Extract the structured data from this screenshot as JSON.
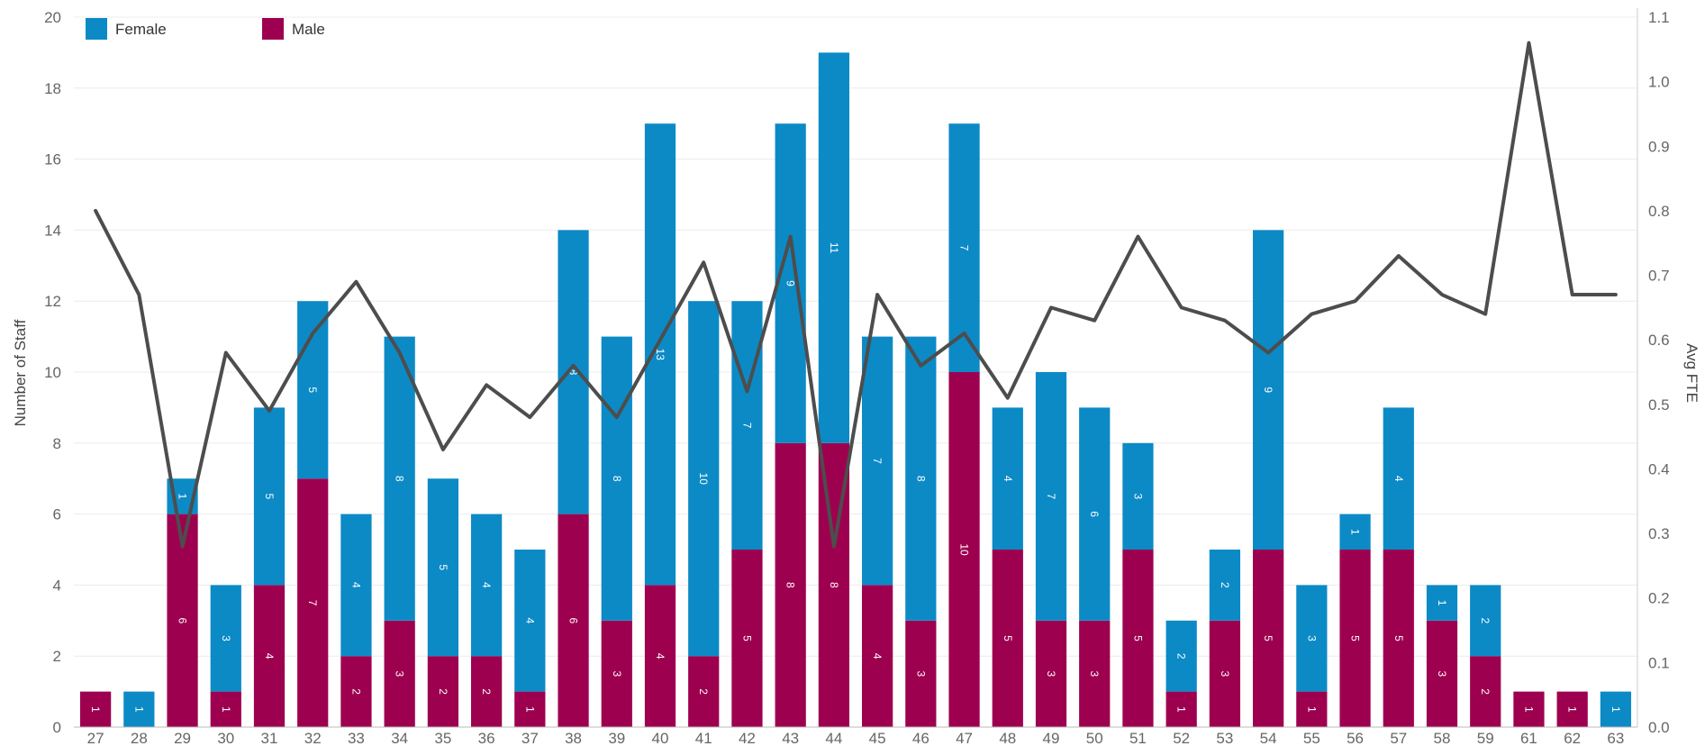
{
  "chart_data": {
    "type": "bar",
    "stacked": true,
    "categories": [
      "27",
      "28",
      "29",
      "30",
      "31",
      "32",
      "33",
      "34",
      "35",
      "36",
      "37",
      "38",
      "39",
      "40",
      "41",
      "42",
      "43",
      "44",
      "45",
      "46",
      "47",
      "48",
      "49",
      "50",
      "51",
      "52",
      "53",
      "54",
      "55",
      "56",
      "57",
      "58",
      "59",
      "61",
      "62",
      "63"
    ],
    "series": [
      {
        "name": "Male",
        "color": "#9e0050",
        "values": [
          1,
          0,
          6,
          1,
          4,
          7,
          2,
          3,
          2,
          2,
          1,
          6,
          3,
          4,
          2,
          5,
          8,
          8,
          4,
          3,
          10,
          5,
          3,
          3,
          5,
          1,
          3,
          5,
          1,
          5,
          5,
          3,
          2,
          1,
          1,
          0
        ]
      },
      {
        "name": "Female",
        "color": "#0c8ac6",
        "values": [
          0,
          1,
          1,
          3,
          5,
          5,
          4,
          8,
          5,
          4,
          4,
          8,
          8,
          13,
          10,
          7,
          9,
          11,
          7,
          8,
          7,
          4,
          7,
          6,
          3,
          2,
          2,
          9,
          3,
          1,
          4,
          1,
          2,
          0,
          0,
          1
        ]
      }
    ],
    "line": {
      "color": "#4d4d4d",
      "axis": "right",
      "values": [
        0.8,
        0.67,
        0.28,
        0.58,
        0.49,
        0.61,
        0.69,
        0.58,
        0.43,
        0.53,
        0.48,
        0.56,
        0.48,
        0.6,
        0.72,
        0.52,
        0.76,
        0.28,
        0.67,
        0.56,
        0.61,
        0.51,
        0.65,
        0.63,
        0.76,
        0.65,
        0.63,
        0.58,
        0.64,
        0.66,
        0.73,
        0.67,
        0.64,
        1.06,
        0.67,
        0.67
      ]
    },
    "ylabel": "Number of Staff",
    "y2label": "Avg FTE",
    "ylim": [
      0,
      20
    ],
    "y2lim": [
      0,
      1.1
    ],
    "yticks": [
      "0",
      "2",
      "4",
      "6",
      "8",
      "10",
      "12",
      "14",
      "16",
      "18",
      "20"
    ],
    "y2ticks": [
      "0.0",
      "0.1",
      "0.2",
      "0.3",
      "0.4",
      "0.5",
      "0.6",
      "0.7",
      "0.8",
      "0.9",
      "1.0",
      "1.1"
    ],
    "grid": true,
    "legend": {
      "position": "top-left",
      "entries": [
        {
          "label": "Female",
          "color": "#0c8ac6"
        },
        {
          "label": "Male",
          "color": "#9e0050"
        }
      ]
    }
  }
}
